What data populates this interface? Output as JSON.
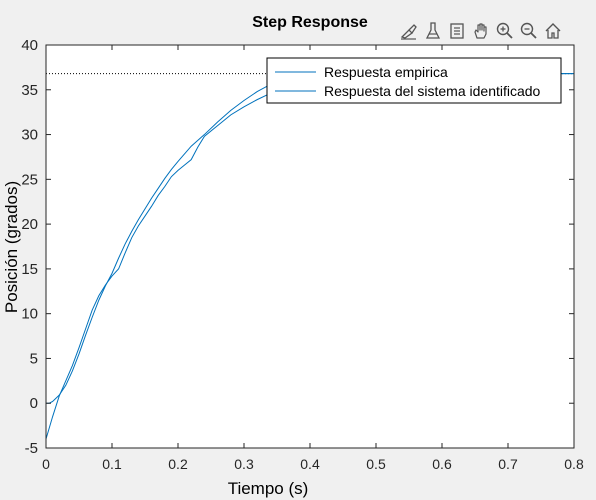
{
  "chart_data": {
    "type": "line",
    "title": "Step Response",
    "xlabel": "Tiempo (s)",
    "ylabel": "Posición (grados)",
    "xlim": [
      0,
      0.8
    ],
    "ylim": [
      -5,
      40
    ],
    "xticks": [
      0,
      0.1,
      0.2,
      0.3,
      0.4,
      0.5,
      0.6,
      0.7,
      0.8
    ],
    "xtick_labels": [
      "0",
      "0.1",
      "0.2",
      "0.3",
      "0.4",
      "0.5",
      "0.6",
      "0.7",
      "0.8"
    ],
    "yticks": [
      -5,
      0,
      5,
      10,
      15,
      20,
      25,
      30,
      35,
      40
    ],
    "ytick_labels": [
      "-5",
      "0",
      "5",
      "10",
      "15",
      "20",
      "25",
      "30",
      "35",
      "40"
    ],
    "grid": false,
    "legend_position": "top-right",
    "steady_state": 36.8,
    "series": [
      {
        "name": "Respuesta empirica",
        "color": "#0072bd",
        "x": [
          0,
          0.01,
          0.02,
          0.03,
          0.04,
          0.05,
          0.06,
          0.07,
          0.08,
          0.09,
          0.1,
          0.11,
          0.12,
          0.13,
          0.14,
          0.15,
          0.16,
          0.17,
          0.18,
          0.19,
          0.2,
          0.21,
          0.22,
          0.23,
          0.24,
          0.26,
          0.28,
          0.3,
          0.32,
          0.34,
          0.36,
          0.4,
          0.45,
          0.5,
          0.55,
          0.6,
          0.65,
          0.7,
          0.75,
          0.8
        ],
        "y": [
          -4.0,
          -1.5,
          0.8,
          2.5,
          4.2,
          6.2,
          8.3,
          10.4,
          12.0,
          13.2,
          14.2,
          15.0,
          16.8,
          18.5,
          19.8,
          20.9,
          22.0,
          23.2,
          24.2,
          25.3,
          26.0,
          26.6,
          27.2,
          28.6,
          29.8,
          31.0,
          32.2,
          33.1,
          33.9,
          34.6,
          35.2,
          35.9,
          36.4,
          36.6,
          36.7,
          36.7,
          36.8,
          36.8,
          36.8,
          36.8
        ]
      },
      {
        "name": "Respuesta del sistema identificado",
        "color": "#0072bd",
        "x": [
          0,
          0.005,
          0.01,
          0.02,
          0.03,
          0.04,
          0.05,
          0.06,
          0.07,
          0.08,
          0.09,
          0.1,
          0.11,
          0.12,
          0.13,
          0.14,
          0.15,
          0.16,
          0.17,
          0.18,
          0.19,
          0.2,
          0.22,
          0.24,
          0.26,
          0.28,
          0.3,
          0.32,
          0.34,
          0.36,
          0.4,
          0.45,
          0.5,
          0.55,
          0.6,
          0.65,
          0.7,
          0.75,
          0.8
        ],
        "y": [
          0,
          0,
          0.2,
          0.9,
          2.0,
          3.6,
          5.5,
          7.6,
          9.6,
          11.5,
          13.1,
          14.5,
          16.2,
          17.8,
          19.2,
          20.5,
          21.7,
          22.9,
          24.0,
          25.1,
          26.1,
          27.0,
          28.7,
          30.0,
          31.4,
          32.7,
          33.8,
          34.8,
          35.6,
          36.1,
          36.6,
          36.8,
          36.8,
          36.8,
          36.8,
          36.8,
          36.8,
          36.8,
          36.8
        ]
      }
    ]
  },
  "toolbar": {
    "buttons": [
      "brush-icon",
      "data-tips-icon",
      "legend-toggle-icon",
      "pan-icon",
      "zoom-in-icon",
      "zoom-out-icon",
      "home-icon"
    ]
  }
}
